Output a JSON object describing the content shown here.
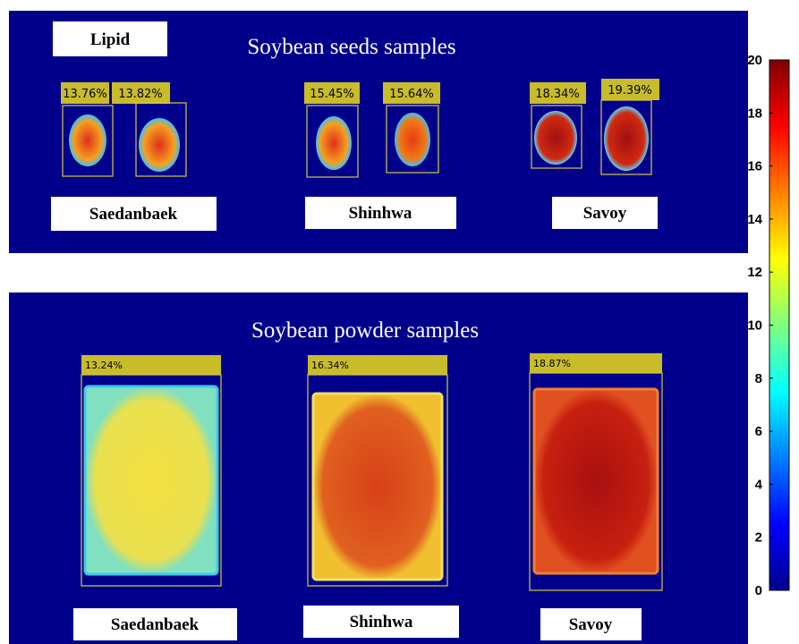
{
  "seeds": {
    "tag": "Lipid",
    "title": "Soybean seeds samples",
    "groups": [
      {
        "name": "Saedanbaek",
        "samples": [
          "13.76%",
          "13.82%"
        ]
      },
      {
        "name": "Shinhwa",
        "samples": [
          "15.45%",
          "15.64%"
        ]
      },
      {
        "name": "Savoy",
        "samples": [
          "18.34%",
          "19.39%"
        ]
      }
    ]
  },
  "powder": {
    "title": "Soybean powder samples",
    "samples": [
      {
        "name": "Saedanbaek",
        "label": "13.24%"
      },
      {
        "name": "Shinhwa",
        "label": "16.34%"
      },
      {
        "name": "Savoy",
        "label": "18.87%"
      }
    ]
  },
  "colorbar": {
    "lim": [
      0,
      20
    ],
    "ticks": [
      0,
      2,
      4,
      6,
      8,
      10,
      12,
      14,
      16,
      18,
      20
    ]
  }
}
